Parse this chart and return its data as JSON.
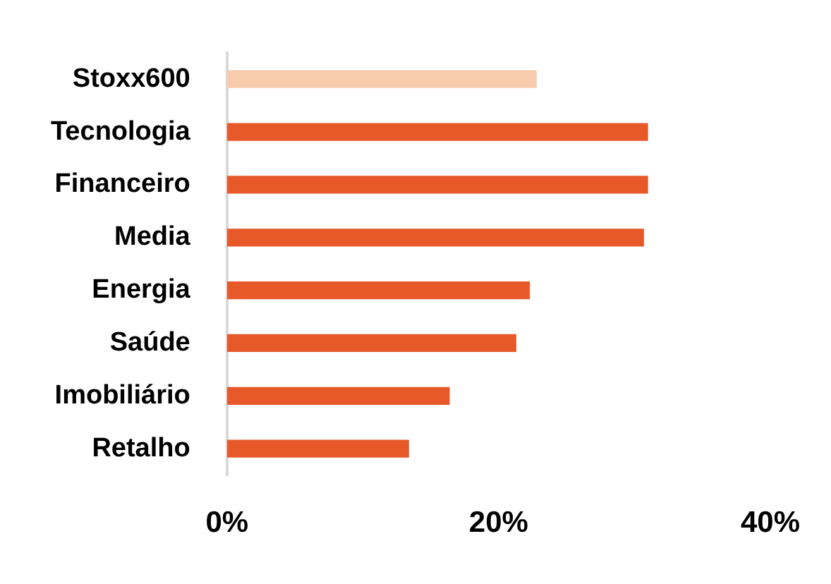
{
  "chart_data": {
    "type": "bar",
    "orientation": "horizontal",
    "categories": [
      "Stoxx600",
      "Tecnologia",
      "Financeiro",
      "Media",
      "Energia",
      "Saúde",
      "Imobiliário",
      "Retalho"
    ],
    "values": [
      22.8,
      31.0,
      31.0,
      30.7,
      22.3,
      21.3,
      16.4,
      13.4
    ],
    "colors": [
      "#f8cbad",
      "#e8592a",
      "#e8592a",
      "#e8592a",
      "#e8592a",
      "#e8592a",
      "#e8592a",
      "#e8592a"
    ],
    "xlim": [
      0,
      40
    ],
    "xticks": [
      {
        "value": 0,
        "label": "0%"
      },
      {
        "value": 20,
        "label": "20%"
      },
      {
        "value": 40,
        "label": "40%"
      }
    ],
    "grid": false,
    "legend": false
  }
}
